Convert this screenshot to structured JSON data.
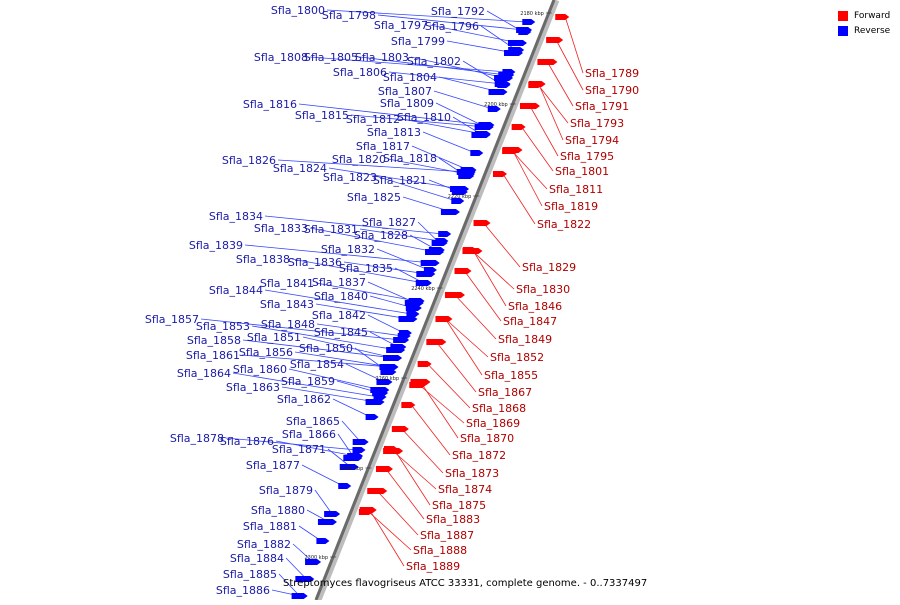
{
  "caption": "Streptomyces flavogriseus ATCC 33331, complete genome. - 0..7337497",
  "legend": {
    "forward_label": "Forward",
    "reverse_label": "Reverse",
    "forward_color": "#ff0000",
    "reverse_color": "#0000ff"
  },
  "ticks": [
    "2180 kbp",
    "2200 kbp",
    "2220 kbp",
    "2240 kbp",
    "2260 kbp",
    "2280 kbp",
    "2300 kbp"
  ],
  "reverse_genes": [
    "Sfla_1800",
    "Sfla_1798",
    "Sfla_1797",
    "Sfla_1792",
    "Sfla_1796",
    "Sfla_1799",
    "Sfla_1808",
    "Sfla_1805",
    "Sfla_1803",
    "Sfla_1802",
    "Sfla_1806",
    "Sfla_1804",
    "Sfla_1807",
    "Sfla_1816",
    "Sfla_1809",
    "Sfla_1815",
    "Sfla_1812",
    "Sfla_1810",
    "Sfla_1813",
    "Sfla_1817",
    "Sfla_1826",
    "Sfla_1820",
    "Sfla_1818",
    "Sfla_1824",
    "Sfla_1823",
    "Sfla_1821",
    "Sfla_1825",
    "Sfla_1834",
    "Sfla_1827",
    "Sfla_1833",
    "Sfla_1831",
    "Sfla_1828",
    "Sfla_1839",
    "Sfla_1832",
    "Sfla_1838",
    "Sfla_1836",
    "Sfla_1835",
    "Sfla_1841",
    "Sfla_1837",
    "Sfla_1844",
    "Sfla_1840",
    "Sfla_1843",
    "Sfla_1842",
    "Sfla_1857",
    "Sfla_1853",
    "Sfla_1848",
    "Sfla_1845",
    "Sfla_1858",
    "Sfla_1851",
    "Sfla_1850",
    "Sfla_1861",
    "Sfla_1856",
    "Sfla_1854",
    "Sfla_1860",
    "Sfla_1864",
    "Sfla_1859",
    "Sfla_1863",
    "Sfla_1862",
    "Sfla_1865",
    "Sfla_1866",
    "Sfla_1878",
    "Sfla_1876",
    "Sfla_1871",
    "Sfla_1877",
    "Sfla_1879",
    "Sfla_1880",
    "Sfla_1881",
    "Sfla_1882",
    "Sfla_1884",
    "Sfla_1885",
    "Sfla_1886"
  ],
  "forward_genes": [
    "Sfla_1789",
    "Sfla_1790",
    "Sfla_1791",
    "Sfla_1793",
    "Sfla_1794",
    "Sfla_1795",
    "Sfla_1801",
    "Sfla_1811",
    "Sfla_1819",
    "Sfla_1822",
    "Sfla_1829",
    "Sfla_1830",
    "Sfla_1846",
    "Sfla_1847",
    "Sfla_1849",
    "Sfla_1852",
    "Sfla_1855",
    "Sfla_1867",
    "Sfla_1868",
    "Sfla_1869",
    "Sfla_1870",
    "Sfla_1872",
    "Sfla_1873",
    "Sfla_1874",
    "Sfla_1875",
    "Sfla_1883",
    "Sfla_1887",
    "Sfla_1888",
    "Sfla_1889"
  ]
}
